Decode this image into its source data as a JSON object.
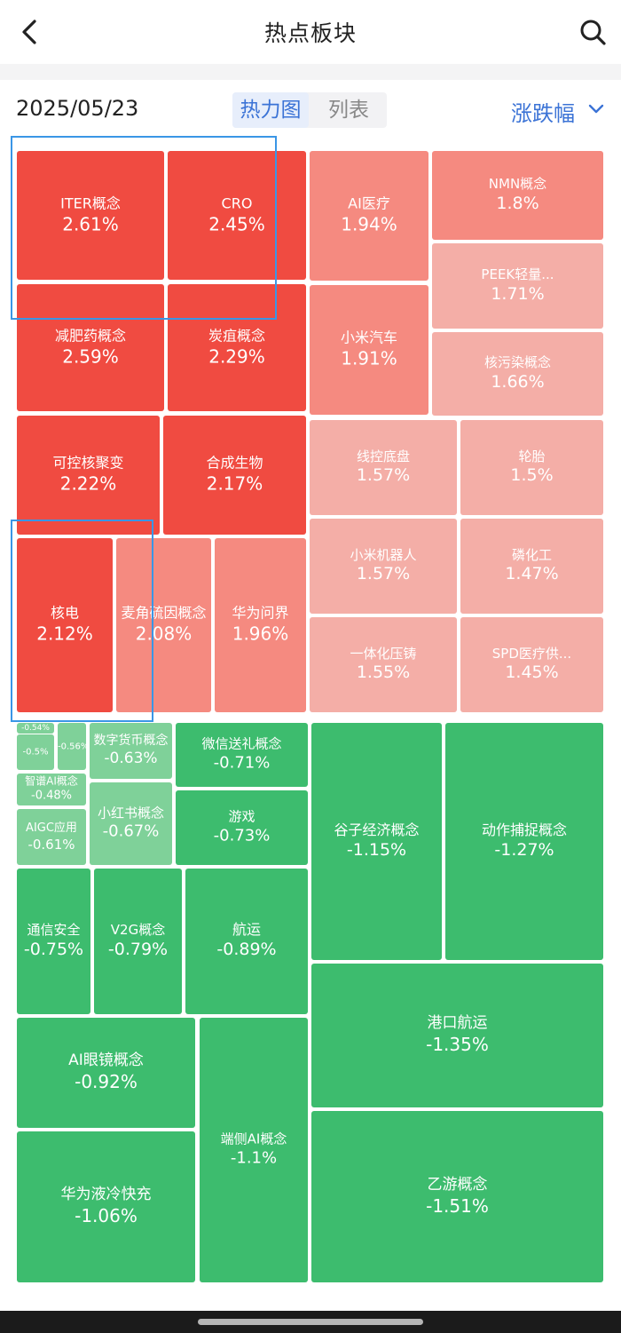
{
  "header": {
    "title": "热点板块",
    "back_icon": "chevron-left-icon",
    "search_icon": "search-icon"
  },
  "toolbar": {
    "date": "2025/05/23",
    "views": [
      {
        "label": "热力图",
        "active": true
      },
      {
        "label": "列表",
        "active": false
      }
    ],
    "sort": {
      "label": "涨跌幅",
      "icon": "chevron-down-icon"
    }
  },
  "colors": {
    "up_strong": "#f04b41",
    "up_mid": "#f58a80",
    "up_light": "#f4aea7",
    "down_strong": "#3dbc6e",
    "down_light": "#7fd199",
    "accent": "#3b73d6",
    "selection": "#3a96e6"
  },
  "sectors": [
    {
      "name": "ITER概念",
      "change": "2.61%"
    },
    {
      "name": "CRO",
      "change": "2.45%"
    },
    {
      "name": "减肥药概念",
      "change": "2.59%"
    },
    {
      "name": "炭疽概念",
      "change": "2.29%"
    },
    {
      "name": "可控核聚变",
      "change": "2.22%"
    },
    {
      "name": "合成生物",
      "change": "2.17%"
    },
    {
      "name": "核电",
      "change": "2.12%"
    },
    {
      "name": "麦角硫因概念",
      "change": "2.08%"
    },
    {
      "name": "华为问界",
      "change": "1.96%"
    },
    {
      "name": "AI医疗",
      "change": "1.94%"
    },
    {
      "name": "小米汽车",
      "change": "1.91%"
    },
    {
      "name": "NMN概念",
      "change": "1.8%"
    },
    {
      "name": "PEEK轻量...",
      "change": "1.71%"
    },
    {
      "name": "核污染概念",
      "change": "1.66%"
    },
    {
      "name": "线控底盘",
      "change": "1.57%"
    },
    {
      "name": "轮胎",
      "change": "1.5%"
    },
    {
      "name": "小米机器人",
      "change": "1.57%"
    },
    {
      "name": "磷化工",
      "change": "1.47%"
    },
    {
      "name": "一体化压铸",
      "change": "1.55%"
    },
    {
      "name": "SPD医疗供...",
      "change": "1.45%"
    },
    {
      "name": "",
      "change": "-0.54%"
    },
    {
      "name": "",
      "change": "-0.5%"
    },
    {
      "name": "",
      "change": "-0.56%"
    },
    {
      "name": "智谱AI概念",
      "change": "-0.48%"
    },
    {
      "name": "AIGC应用",
      "change": "-0.61%"
    },
    {
      "name": "数字货币概念",
      "change": "-0.63%"
    },
    {
      "name": "小红书概念",
      "change": "-0.67%"
    },
    {
      "name": "微信送礼概念",
      "change": "-0.71%"
    },
    {
      "name": "游戏",
      "change": "-0.73%"
    },
    {
      "name": "谷子经济概念",
      "change": "-1.15%"
    },
    {
      "name": "动作捕捉概念",
      "change": "-1.27%"
    },
    {
      "name": "通信安全",
      "change": "-0.75%"
    },
    {
      "name": "V2G概念",
      "change": "-0.79%"
    },
    {
      "name": "航运",
      "change": "-0.89%"
    },
    {
      "name": "港口航运",
      "change": "-1.35%"
    },
    {
      "name": "AI眼镜概念",
      "change": "-0.92%"
    },
    {
      "name": "端侧AI概念",
      "change": "-1.1%"
    },
    {
      "name": "华为液冷快充",
      "change": "-1.06%"
    },
    {
      "name": "乙游概念",
      "change": "-1.51%"
    }
  ]
}
